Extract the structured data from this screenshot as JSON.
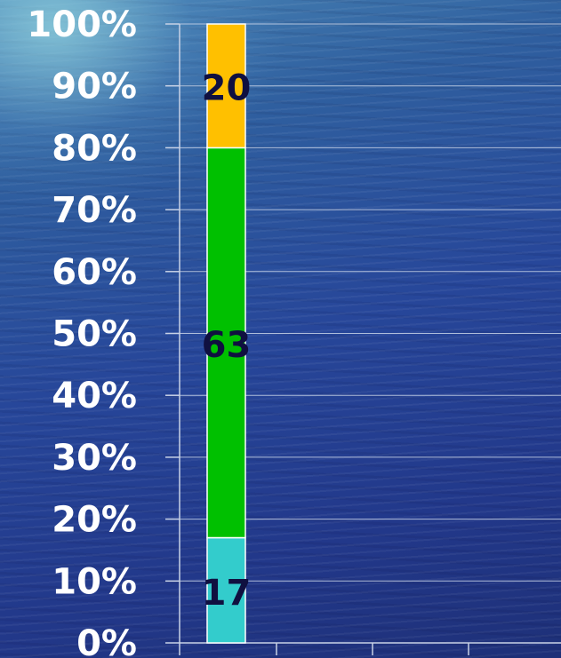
{
  "chart_data": {
    "type": "bar",
    "stacked": true,
    "percent_stacked": true,
    "categories": [
      ""
    ],
    "series": [
      {
        "values": [
          17
        ],
        "color": "#33cccc"
      },
      {
        "values": [
          63
        ],
        "color": "#00c000"
      },
      {
        "values": [
          20
        ],
        "color": "#ffc000"
      }
    ],
    "data_labels": [
      "17",
      "63",
      "20"
    ],
    "y_ticks": [
      "0%",
      "10%",
      "20%",
      "30%",
      "40%",
      "50%",
      "60%",
      "70%",
      "80%",
      "90%",
      "100%"
    ],
    "ylim": [
      0,
      100
    ],
    "grid": true,
    "legend": "none",
    "title": "",
    "xlabel": "",
    "ylabel": "",
    "colors": {
      "tick_text": "#ffffff",
      "label_text": "#101040",
      "gridline": "#c8d2e6"
    }
  }
}
